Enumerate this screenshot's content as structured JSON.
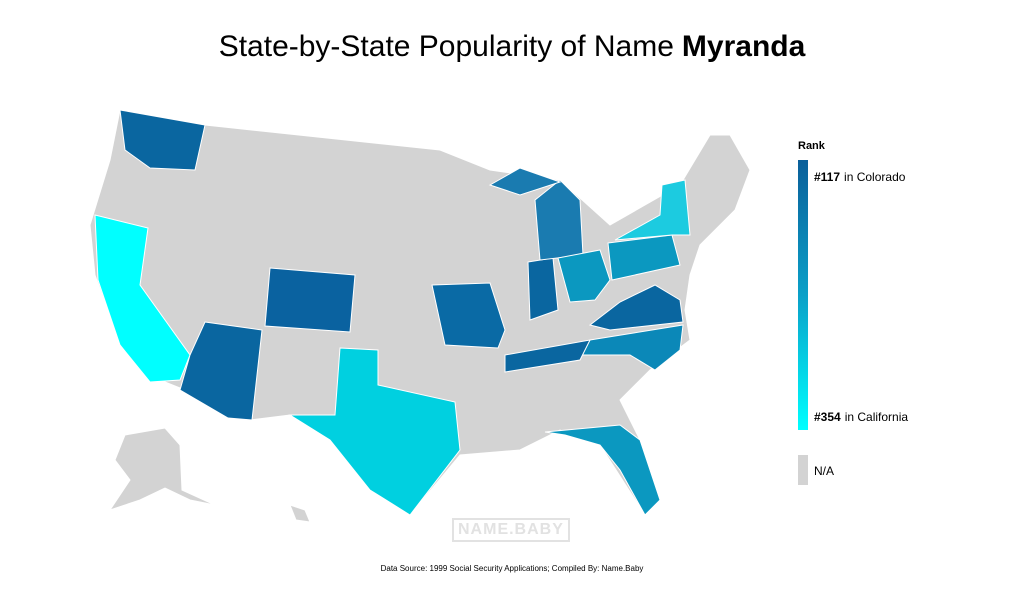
{
  "title": {
    "prefix": "State-by-State Popularity of Name",
    "name": "Myranda"
  },
  "legend": {
    "title": "Rank",
    "top": {
      "rank": "#117",
      "label": "in Colorado"
    },
    "bottom": {
      "rank": "#354",
      "label": "in California"
    },
    "na": "N/A"
  },
  "watermark": "NAME.BABY",
  "source": "Data Source: 1999 Social Security Applications; Compiled By: Name.Baby"
}
